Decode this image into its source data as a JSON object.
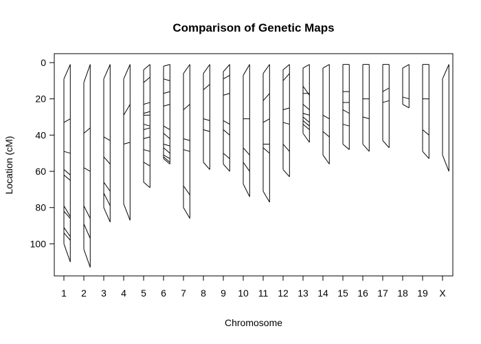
{
  "chart_data": {
    "type": "genetic-map-comparison",
    "title": "Comparison of Genetic Maps",
    "xlabel": "Chromosome",
    "ylabel": "Location (cM)",
    "y_ticks": [
      0,
      20,
      40,
      60,
      80,
      100
    ],
    "ylim": [
      118,
      -5
    ],
    "chromosomes": [
      {
        "name": "1",
        "left": [
          9,
          33,
          49,
          59,
          62,
          79,
          82,
          91,
          94,
          100
        ],
        "right": [
          1,
          31,
          50,
          62,
          65,
          85,
          86,
          96,
          98,
          110
        ]
      },
      {
        "name": "2",
        "left": [
          11,
          39,
          58,
          79,
          89,
          103
        ],
        "right": [
          1,
          36,
          60,
          86,
          97,
          113
        ]
      },
      {
        "name": "3",
        "left": [
          9,
          41,
          52,
          66,
          72,
          80
        ],
        "right": [
          1,
          43,
          56,
          71,
          79,
          88
        ]
      },
      {
        "name": "4",
        "left": [
          9,
          29,
          45,
          78
        ],
        "right": [
          1,
          23,
          44,
          87
        ]
      },
      {
        "name": "5",
        "left": [
          4,
          11,
          23,
          28,
          29,
          34,
          37,
          42,
          48,
          55,
          66
        ],
        "right": [
          1,
          8,
          22,
          27,
          29,
          35,
          36,
          41,
          49,
          57,
          69
        ]
      },
      {
        "name": "6",
        "left": [
          2,
          9,
          17,
          24,
          35,
          39,
          45,
          47,
          51,
          52,
          53
        ],
        "right": [
          1,
          10,
          16,
          23,
          37,
          42,
          46,
          50,
          53,
          55,
          56
        ]
      },
      {
        "name": "7",
        "left": [
          6,
          26,
          42,
          48,
          68,
          80
        ],
        "right": [
          1,
          23,
          43,
          49,
          73,
          86
        ]
      },
      {
        "name": "8",
        "left": [
          6,
          15,
          31,
          37,
          55
        ],
        "right": [
          1,
          12,
          32,
          38,
          59
        ]
      },
      {
        "name": "9",
        "left": [
          5,
          9,
          18,
          32,
          37,
          50,
          56
        ],
        "right": [
          1,
          7,
          17,
          34,
          40,
          53,
          60
        ]
      },
      {
        "name": "10",
        "left": [
          7,
          31,
          47,
          55,
          67
        ],
        "right": [
          1,
          31,
          51,
          60,
          74
        ]
      },
      {
        "name": "11",
        "left": [
          6,
          21,
          33,
          45,
          47,
          71
        ],
        "right": [
          1,
          17,
          31,
          45,
          50,
          77
        ]
      },
      {
        "name": "12",
        "left": [
          4,
          10,
          26,
          33,
          45,
          59
        ],
        "right": [
          1,
          6,
          25,
          34,
          49,
          63
        ]
      },
      {
        "name": "13",
        "left": [
          3,
          13,
          17,
          23,
          28,
          30,
          32,
          34,
          39
        ],
        "right": [
          1,
          18,
          17,
          26,
          29,
          33,
          35,
          37,
          44
        ]
      },
      {
        "name": "14",
        "left": [
          3,
          29,
          38,
          51
        ],
        "right": [
          1,
          31,
          41,
          56
        ]
      },
      {
        "name": "15",
        "left": [
          1,
          16,
          22,
          26,
          34,
          45
        ],
        "right": [
          1,
          16,
          22,
          28,
          35,
          48
        ]
      },
      {
        "name": "16",
        "left": [
          1,
          20,
          30,
          45
        ],
        "right": [
          1,
          20,
          31,
          49
        ]
      },
      {
        "name": "17",
        "left": [
          1,
          16,
          22,
          43
        ],
        "right": [
          1,
          14,
          21,
          47
        ]
      },
      {
        "name": "18",
        "left": [
          3,
          19,
          23
        ],
        "right": [
          1,
          20,
          25
        ]
      },
      {
        "name": "19",
        "left": [
          1,
          20,
          37,
          49
        ],
        "right": [
          1,
          20,
          40,
          53
        ]
      },
      {
        "name": "X",
        "left": [
          9,
          51
        ],
        "right": [
          1,
          60
        ]
      }
    ]
  }
}
